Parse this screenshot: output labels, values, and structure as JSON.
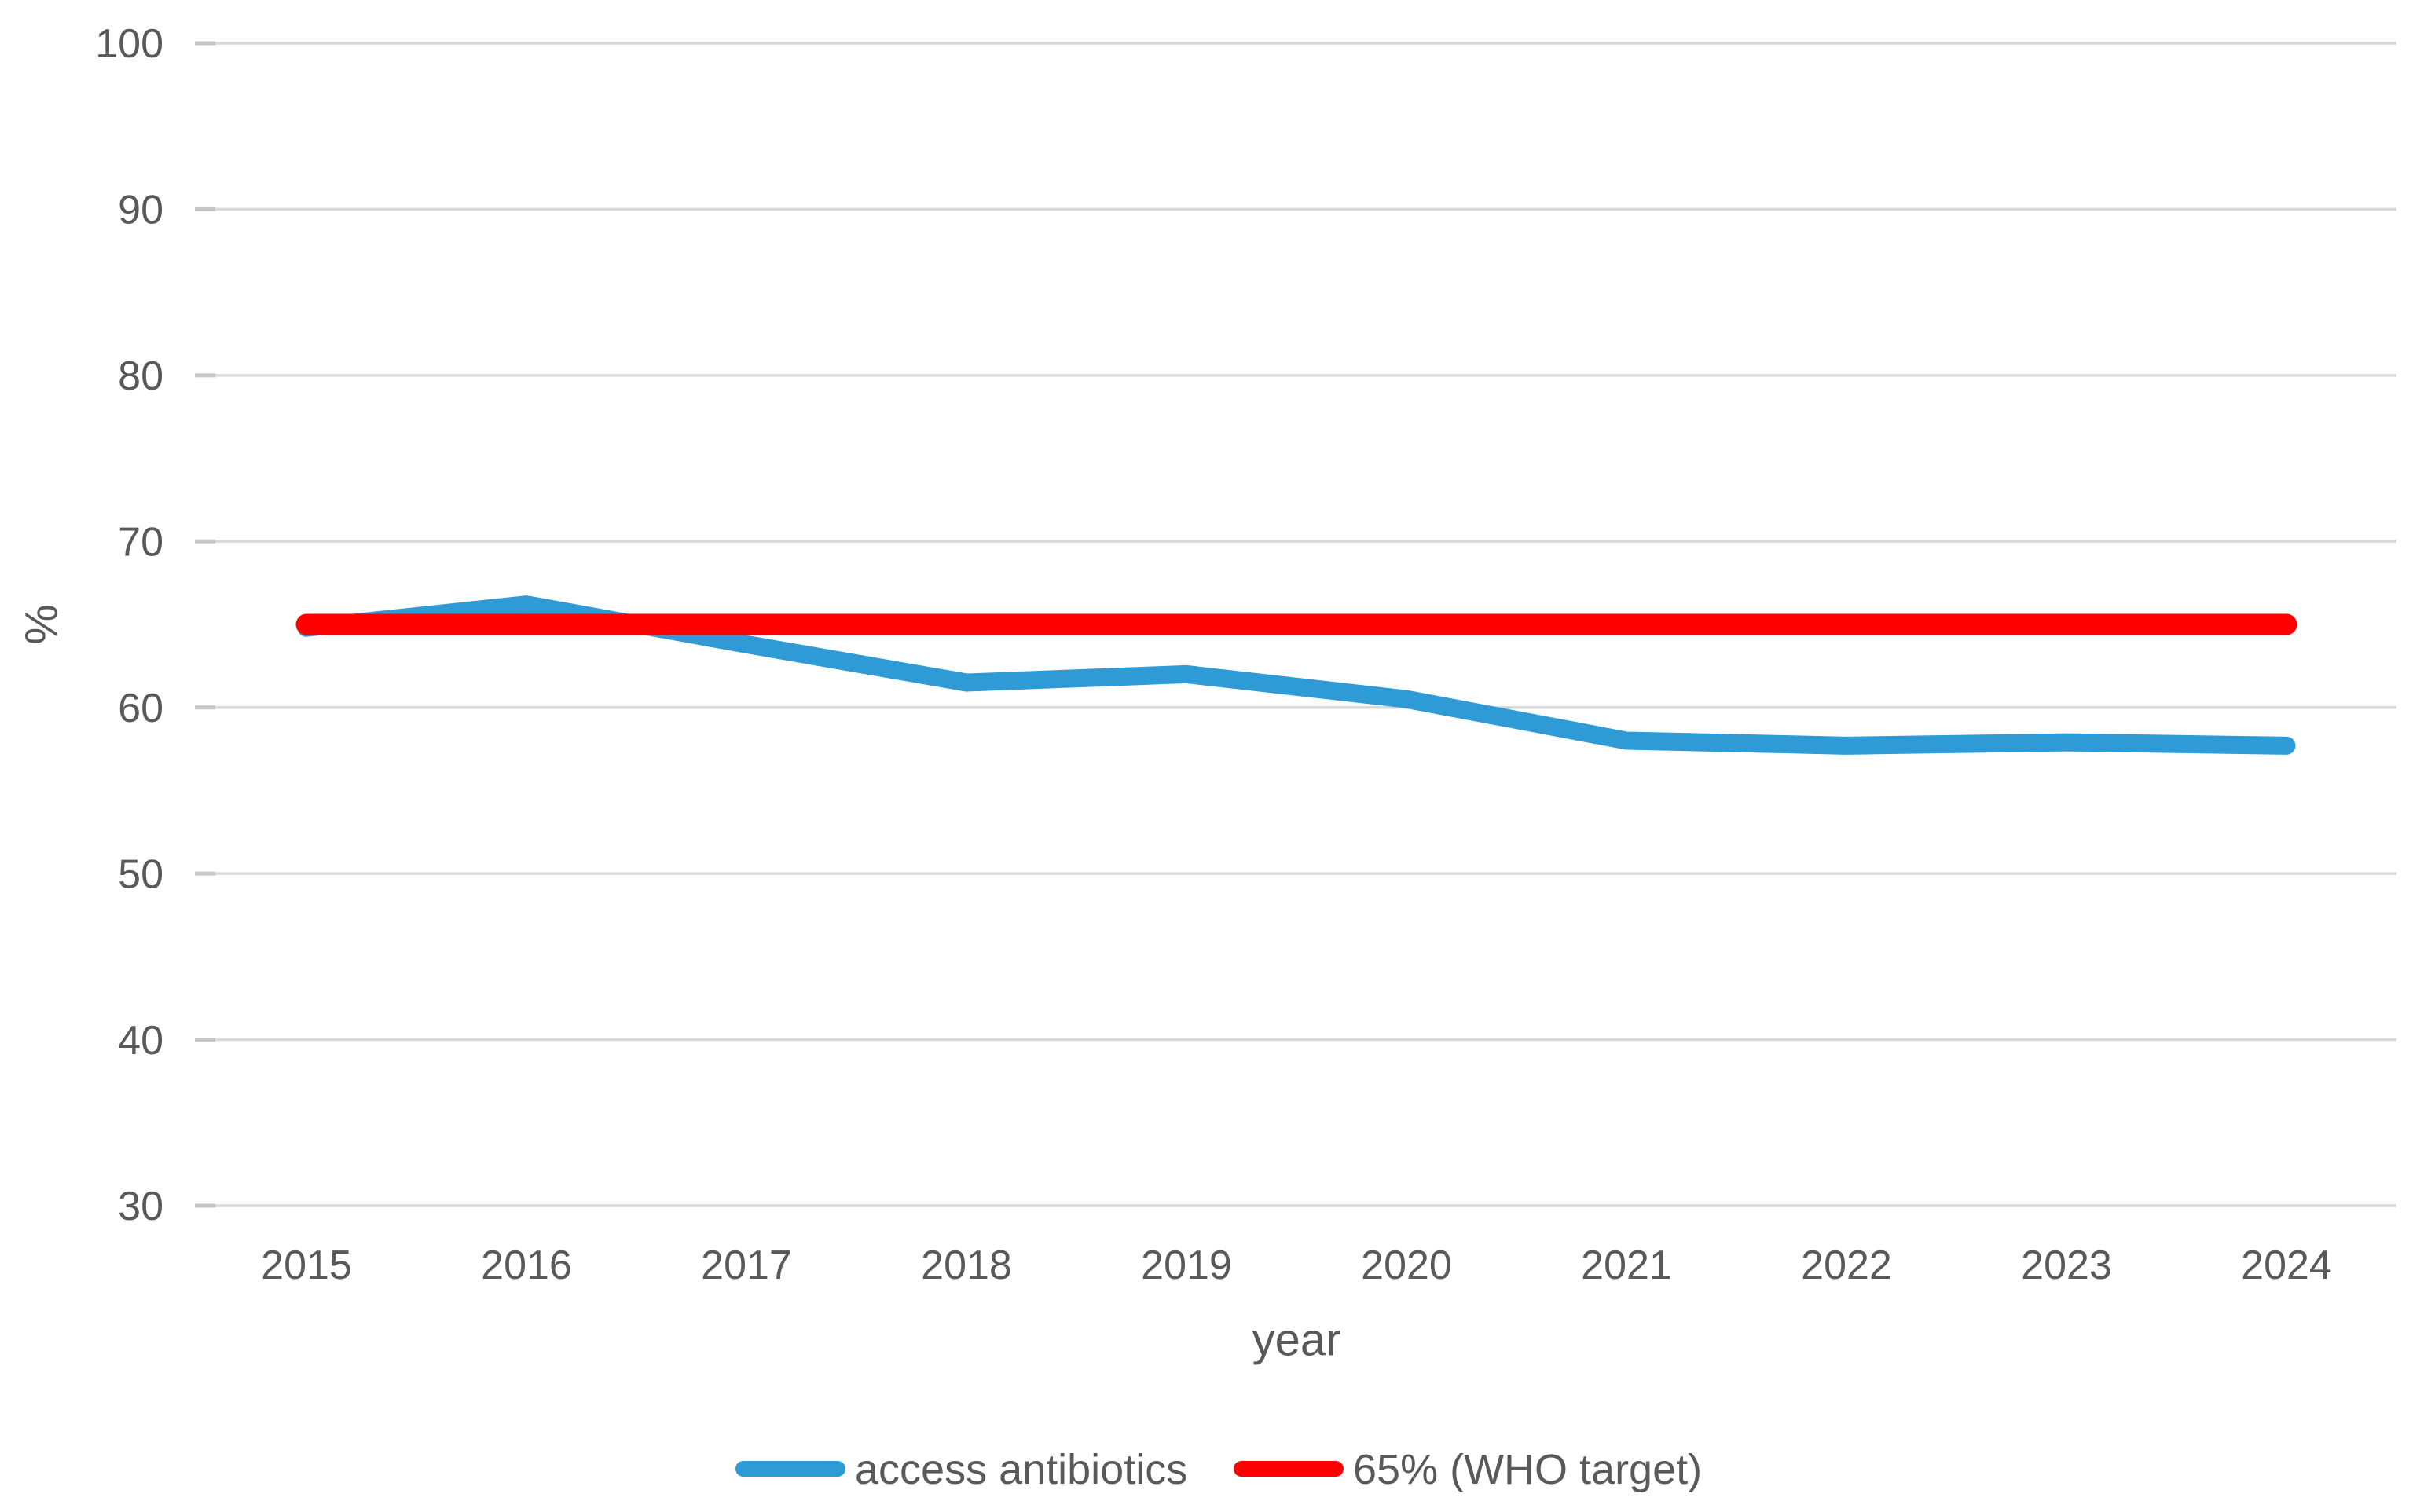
{
  "chart_data": {
    "type": "line",
    "title": "",
    "xlabel": "year",
    "ylabel": "%",
    "x": [
      2015,
      2016,
      2017,
      2018,
      2019,
      2020,
      2021,
      2022,
      2023,
      2024
    ],
    "series": [
      {
        "name": "access antibiotics",
        "color": "#2E9AD6",
        "stroke_width": 23,
        "values": [
          64.8,
          66.2,
          63.8,
          61.5,
          62.0,
          60.5,
          58.0,
          57.7,
          57.9,
          57.7
        ]
      },
      {
        "name": "65% (WHO target)",
        "color": "#FF0000",
        "stroke_width": 27,
        "values": [
          65,
          65,
          65,
          65,
          65,
          65,
          65,
          65,
          65,
          65
        ]
      }
    ],
    "ylim": [
      30,
      100
    ],
    "yticks": [
      100,
      90,
      80,
      70,
      60,
      50,
      40,
      30
    ],
    "grid": "horizontal",
    "legend_position": "bottom"
  },
  "colors": {
    "background": "#FFFFFF",
    "gridline": "#D9D9D9",
    "tick_stub": "#C6C6C6",
    "label_text": "#595959"
  }
}
